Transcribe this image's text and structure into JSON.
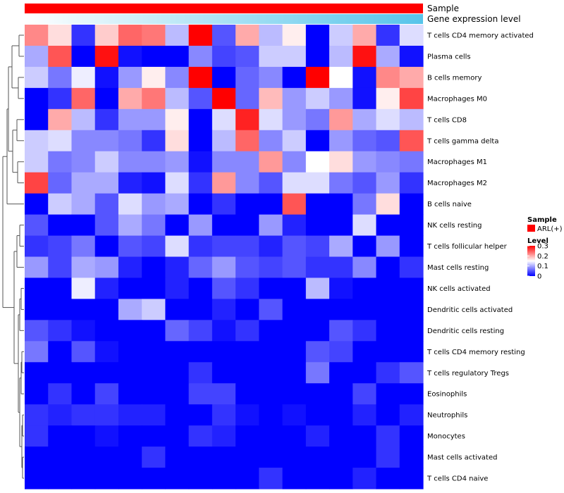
{
  "chart_data": {
    "type": "heatmap",
    "annotation_tracks": [
      {
        "name": "Sample",
        "color_label": "sample-track"
      },
      {
        "name": "Gene expression level",
        "color_label": "expression-track"
      }
    ],
    "sample_legend": {
      "title": "Sample",
      "entries": [
        {
          "label": "ARL(+)",
          "color": "#ff0000"
        }
      ]
    },
    "level_legend": {
      "title": "Level",
      "ticks": [
        "0.3",
        "0.2",
        "0.1",
        "0"
      ],
      "tick_values": [
        0.3,
        0.2,
        0.1,
        0
      ]
    },
    "color_scale": {
      "low": "#0000ff",
      "mid": "#ffffff",
      "high": "#ff0000",
      "min": 0,
      "mid_value": 0.15,
      "max": 0.3
    },
    "expression_gradient": {
      "low": "#ffffff",
      "high": "#56c4ea"
    },
    "n_columns": 17,
    "rows": [
      {
        "label": "T cells CD4 memory activated",
        "values": [
          0.22,
          0.17,
          0.03,
          0.18,
          0.24,
          0.23,
          0.11,
          0.3,
          0.05,
          0.2,
          0.11,
          0.16,
          0.0,
          0.12,
          0.2,
          0.03,
          0.13
        ]
      },
      {
        "label": "Plasma cells",
        "values": [
          0.1,
          0.25,
          0.0,
          0.29,
          0.01,
          0.0,
          0.0,
          0.08,
          0.04,
          0.05,
          0.12,
          0.12,
          0.0,
          0.11,
          0.29,
          0.1,
          0.01
        ]
      },
      {
        "label": "B cells memory",
        "values": [
          0.12,
          0.07,
          0.14,
          0.01,
          0.09,
          0.16,
          0.08,
          0.3,
          0.0,
          0.06,
          0.08,
          0.0,
          0.3,
          0.15,
          0.01,
          0.22,
          0.2
        ]
      },
      {
        "label": "Macrophages M0",
        "values": [
          0.0,
          0.03,
          0.24,
          0.0,
          0.2,
          0.23,
          0.11,
          0.05,
          0.3,
          0.06,
          0.19,
          0.09,
          0.12,
          0.09,
          0.01,
          0.16,
          0.26
        ]
      },
      {
        "label": "T cells CD8",
        "values": [
          0.0,
          0.2,
          0.11,
          0.03,
          0.09,
          0.09,
          0.16,
          0.0,
          0.13,
          0.28,
          0.13,
          0.09,
          0.07,
          0.21,
          0.1,
          0.13,
          0.11
        ]
      },
      {
        "label": "T cells gamma delta",
        "values": [
          0.12,
          0.13,
          0.08,
          0.08,
          0.07,
          0.03,
          0.17,
          0.0,
          0.11,
          0.24,
          0.08,
          0.12,
          0.0,
          0.09,
          0.06,
          0.05,
          0.25
        ]
      },
      {
        "label": "Macrophages M1",
        "values": [
          0.12,
          0.07,
          0.08,
          0.12,
          0.08,
          0.08,
          0.09,
          0.01,
          0.08,
          0.08,
          0.21,
          0.08,
          0.15,
          0.17,
          0.09,
          0.08,
          0.07
        ]
      },
      {
        "label": "Macrophages M2",
        "values": [
          0.26,
          0.06,
          0.1,
          0.1,
          0.02,
          0.01,
          0.13,
          0.03,
          0.21,
          0.08,
          0.05,
          0.13,
          0.13,
          0.07,
          0.05,
          0.09,
          0.03
        ]
      },
      {
        "label": "B cells naive",
        "values": [
          0.0,
          0.12,
          0.1,
          0.05,
          0.13,
          0.09,
          0.1,
          0.0,
          0.03,
          0.0,
          0.0,
          0.25,
          0.0,
          0.0,
          0.07,
          0.17,
          0.0
        ]
      },
      {
        "label": "NK cells resting",
        "values": [
          0.05,
          0.0,
          0.0,
          0.05,
          0.1,
          0.07,
          0.0,
          0.09,
          0.0,
          0.0,
          0.09,
          0.02,
          0.0,
          0.0,
          0.13,
          0.0,
          0.0
        ]
      },
      {
        "label": "T cells follicular helper",
        "values": [
          0.03,
          0.04,
          0.07,
          0.0,
          0.05,
          0.04,
          0.13,
          0.03,
          0.04,
          0.04,
          0.02,
          0.05,
          0.04,
          0.1,
          0.0,
          0.09,
          0.0
        ]
      },
      {
        "label": "Mast cells resting",
        "values": [
          0.09,
          0.04,
          0.1,
          0.09,
          0.02,
          0.0,
          0.02,
          0.06,
          0.09,
          0.05,
          0.04,
          0.05,
          0.03,
          0.03,
          0.08,
          0.0,
          0.03
        ]
      },
      {
        "label": "NK cells activated",
        "values": [
          0.0,
          0.0,
          0.14,
          0.02,
          0.0,
          0.0,
          0.02,
          0.0,
          0.05,
          0.03,
          0.0,
          0.0,
          0.11,
          0.01,
          0.0,
          0.0,
          0.0
        ]
      },
      {
        "label": "Dendritic cells activated",
        "values": [
          0.0,
          0.0,
          0.0,
          0.0,
          0.1,
          0.12,
          0.0,
          0.0,
          0.02,
          0.0,
          0.05,
          0.0,
          0.0,
          0.0,
          0.0,
          0.0,
          0.0
        ]
      },
      {
        "label": "Dendritic cells resting",
        "values": [
          0.05,
          0.03,
          0.01,
          0.0,
          0.0,
          0.0,
          0.06,
          0.04,
          0.01,
          0.03,
          0.0,
          0.0,
          0.0,
          0.05,
          0.03,
          0.0,
          0.0
        ]
      },
      {
        "label": "T cells CD4 memory resting",
        "values": [
          0.07,
          0.0,
          0.05,
          0.01,
          0.0,
          0.0,
          0.0,
          0.0,
          0.0,
          0.0,
          0.0,
          0.0,
          0.05,
          0.04,
          0.0,
          0.0,
          0.0
        ]
      },
      {
        "label": "T cells regulatory  Tregs",
        "values": [
          0.0,
          0.0,
          0.0,
          0.0,
          0.0,
          0.0,
          0.0,
          0.03,
          0.0,
          0.0,
          0.0,
          0.0,
          0.07,
          0.0,
          0.0,
          0.03,
          0.05
        ]
      },
      {
        "label": "Eosinophils",
        "values": [
          0.0,
          0.03,
          0.0,
          0.04,
          0.0,
          0.0,
          0.0,
          0.04,
          0.04,
          0.0,
          0.0,
          0.0,
          0.0,
          0.0,
          0.04,
          0.0,
          0.0
        ]
      },
      {
        "label": "Neutrophils",
        "values": [
          0.03,
          0.02,
          0.03,
          0.03,
          0.02,
          0.02,
          0.0,
          0.0,
          0.03,
          0.01,
          0.0,
          0.01,
          0.0,
          0.0,
          0.02,
          0.0,
          0.02
        ]
      },
      {
        "label": "Monocytes",
        "values": [
          0.03,
          0.0,
          0.0,
          0.01,
          0.0,
          0.0,
          0.0,
          0.03,
          0.02,
          0.0,
          0.0,
          0.0,
          0.02,
          0.0,
          0.0,
          0.03,
          0.0
        ]
      },
      {
        "label": "Mast cells activated",
        "values": [
          0.0,
          0.0,
          0.0,
          0.0,
          0.0,
          0.03,
          0.0,
          0.0,
          0.0,
          0.0,
          0.0,
          0.0,
          0.0,
          0.0,
          0.0,
          0.03,
          0.0
        ]
      },
      {
        "label": "T cells CD4 naive",
        "values": [
          0.0,
          0.0,
          0.0,
          0.0,
          0.0,
          0.0,
          0.0,
          0.0,
          0.0,
          0.0,
          0.03,
          0.0,
          0.0,
          0.0,
          0.02,
          0.0,
          0.0
        ]
      }
    ]
  }
}
